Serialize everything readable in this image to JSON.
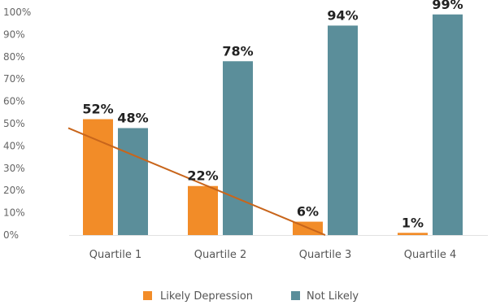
{
  "chart_data": {
    "type": "bar",
    "categories": [
      "Quartile 1",
      "Quartile 2",
      "Quartile 3",
      "Quartile 4"
    ],
    "series": [
      {
        "name": "Likely Depression",
        "values": [
          52,
          22,
          6,
          1
        ],
        "color": "#F28C28"
      },
      {
        "name": "Not Likely",
        "values": [
          48,
          78,
          94,
          99
        ],
        "color": "#5B8E9A"
      }
    ],
    "data_labels": {
      "Likely Depression": [
        "52%",
        "22%",
        "6%",
        "1%"
      ],
      "Not Likely": [
        "48%",
        "78%",
        "94%",
        "99%"
      ]
    },
    "ylim": [
      0,
      100
    ],
    "y_ticks": [
      "0%",
      "10%",
      "20%",
      "30%",
      "40%",
      "50%",
      "60%",
      "70%",
      "80%",
      "90%",
      "100%"
    ],
    "grid": false,
    "legend": "bottom-center",
    "trendline": {
      "series": "Likely Depression",
      "color": "#C8651B",
      "from": [
        1,
        48
      ],
      "to": [
        3,
        0
      ]
    }
  }
}
